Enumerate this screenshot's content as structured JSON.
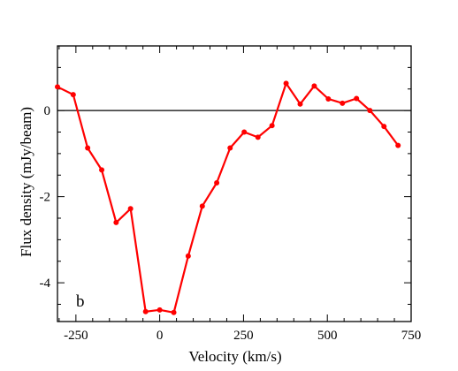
{
  "chart_data": {
    "type": "line",
    "panel_label": "b",
    "title": "",
    "xlabel": "Velocity (km/s)",
    "ylabel": "Flux density (mJy/beam)",
    "xlim": [
      -305,
      750
    ],
    "ylim": [
      -4.9,
      1.5
    ],
    "x_ticks": [
      -250,
      0,
      250,
      500,
      750
    ],
    "y_ticks": [
      0,
      -2,
      -4
    ],
    "zero_line": true,
    "grid": false,
    "series": [
      {
        "color": "#ff0000",
        "x": [
          -305,
          -258,
          -215,
          -173,
          -130,
          -87,
          -42,
          0,
          42,
          85,
          127,
          170,
          210,
          252,
          293,
          335,
          377,
          419,
          461,
          503,
          545,
          587,
          627,
          669,
          711
        ],
        "y": [
          0.55,
          0.37,
          -0.87,
          -1.38,
          -2.6,
          -2.28,
          -4.67,
          -4.63,
          -4.69,
          -3.38,
          -2.22,
          -1.68,
          -0.87,
          -0.5,
          -0.62,
          -0.35,
          0.63,
          0.15,
          0.57,
          0.27,
          0.17,
          0.28,
          0.0,
          -0.37,
          -0.81
        ]
      }
    ]
  }
}
